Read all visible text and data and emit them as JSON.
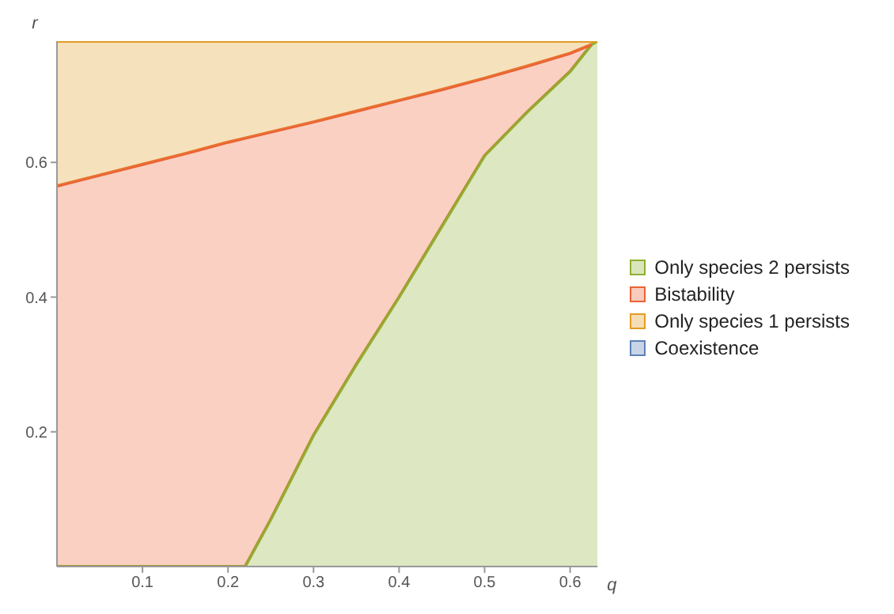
{
  "chart_data": {
    "type": "area",
    "stacked": true,
    "xlabel": "q",
    "ylabel": "r",
    "x": [
      0,
      0.05,
      0.1,
      0.15,
      0.2,
      0.22,
      0.25,
      0.3,
      0.35,
      0.4,
      0.45,
      0.5,
      0.55,
      0.6,
      0.625,
      0.632
    ],
    "series": [
      {
        "name": "Only species 2 persists",
        "color": "#8fb032",
        "values": [
          0,
          0,
          0,
          0,
          0,
          0,
          0.07,
          0.195,
          0.3,
          0.4,
          0.505,
          0.61,
          0.675,
          0.735,
          0.775,
          0.78
        ]
      },
      {
        "name": "Bistability",
        "color": "#eb6235",
        "values": [
          0.565,
          0.581,
          0.597,
          0.613,
          0.63,
          0.636,
          0.575,
          0.465,
          0.376,
          0.292,
          0.203,
          0.115,
          0.068,
          0.027,
          0,
          null
        ]
      },
      {
        "name": "Only species 1 persists",
        "color": "#e19c24",
        "values": [
          0.215,
          0.199,
          0.183,
          0.167,
          0.15,
          0.144,
          0.135,
          0.12,
          0.104,
          0.088,
          0.072,
          0.055,
          0.037,
          0.018,
          0.005,
          0
        ]
      },
      {
        "name": "Coexistence",
        "color": "#5e81b5",
        "values": [
          null,
          null,
          null,
          null,
          null,
          null,
          null,
          null,
          null,
          null,
          null,
          null,
          null,
          null,
          null,
          null
        ]
      }
    ],
    "xlim": [
      0,
      0.632
    ],
    "ylim": [
      0,
      0.78
    ],
    "xticks": [
      0.1,
      0.2,
      0.3,
      0.4,
      0.5,
      0.6
    ],
    "yticks": [
      0.2,
      0.4,
      0.6
    ],
    "grid": false,
    "legend": "right"
  }
}
